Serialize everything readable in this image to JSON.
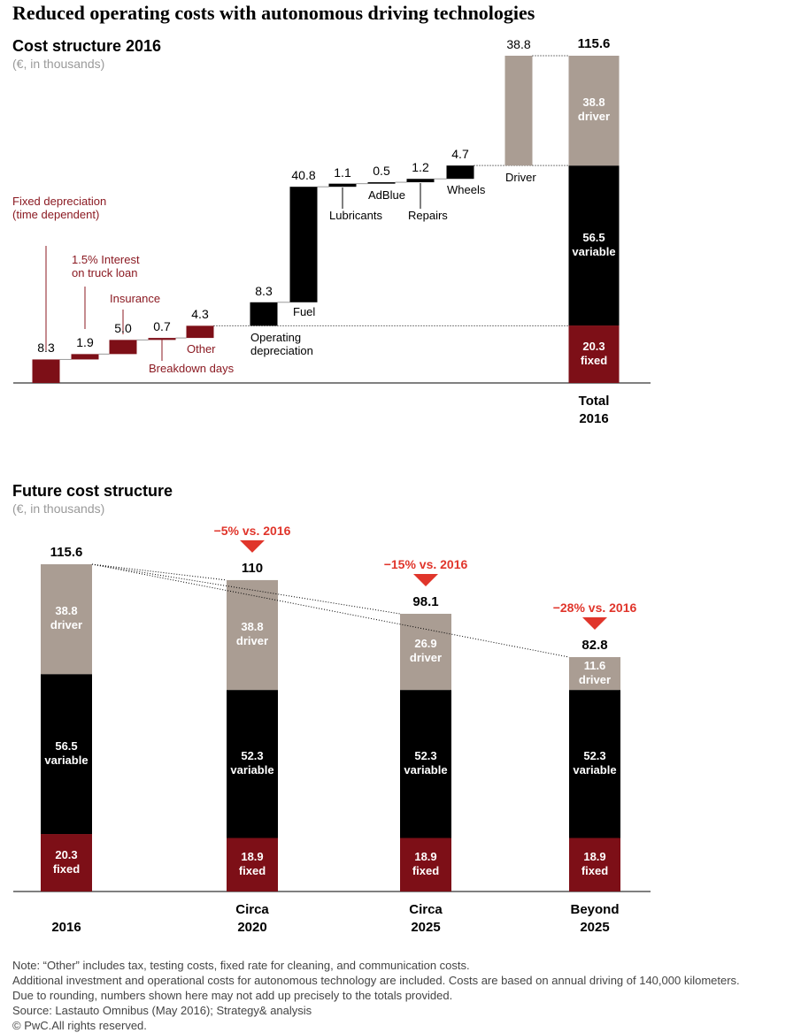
{
  "title": "Reduced operating costs with autonomous driving technologies",
  "chart_data": [
    {
      "type": "waterfall",
      "title": "Cost structure 2016",
      "subtitle": "(€, in thousands)",
      "categories": [
        "Fixed depreciation (time dependent)",
        "1.5% Interest on truck loan",
        "Insurance",
        "Breakdown days",
        "Other",
        "Operating depreciation",
        "Fuel",
        "Lubricants",
        "AdBlue",
        "Repairs",
        "Wheels",
        "Driver"
      ],
      "values": [
        8.3,
        1.9,
        5,
        0.7,
        4.3,
        8.3,
        40.8,
        1.1,
        0.5,
        1.2,
        4.7,
        38.8
      ],
      "value_labels": [
        "8.3",
        "1.9",
        "5.0",
        "0.7",
        "4.3",
        "8.3",
        "40.8",
        "1.1",
        "0.5",
        "1.2",
        "4.7",
        "38.8"
      ],
      "colors": [
        "#7d0f17",
        "#7d0f17",
        "#7d0f17",
        "#7d0f17",
        "#7d0f17",
        "#000000",
        "#000000",
        "#000000",
        "#000000",
        "#000000",
        "#000000",
        "#aa9d93"
      ],
      "total": {
        "label": "Total 2016",
        "value": 115.6,
        "series": [
          {
            "name": "fixed",
            "color": "#7d0f17",
            "value": 20.3
          },
          {
            "name": "variable",
            "color": "#000000",
            "value": 56.5
          },
          {
            "name": "driver",
            "color": "#aa9d93",
            "value": 38.8
          }
        ]
      }
    },
    {
      "type": "stacked_bar",
      "title": "Future cost structure",
      "subtitle": "(€, in thousands)",
      "categories": [
        "2016",
        "Circa 2020",
        "Circa 2025",
        "Beyond 2025"
      ],
      "series": [
        {
          "name": "fixed",
          "color": "#7d0f17",
          "values": [
            20.3,
            18.9,
            18.9,
            18.9
          ]
        },
        {
          "name": "variable",
          "color": "#000000",
          "values": [
            56.5,
            52.3,
            52.3,
            52.3
          ]
        },
        {
          "name": "driver",
          "color": "#aa9d93",
          "values": [
            38.8,
            38.8,
            26.9,
            11.6
          ]
        }
      ],
      "totals": [
        115.6,
        110,
        98.1,
        82.8
      ],
      "changes": [
        null,
        "−5% vs. 2016",
        "−15% vs. 2016",
        "−28% vs. 2016"
      ],
      "change_color": "#e0352b"
    }
  ],
  "notes": [
    "Note: “Other” includes tax, testing costs, fixed rate for cleaning, and communication costs.",
    "Additional investment and operational costs for autonomous technology are included. Costs are based on annual driving of 140,000 kilometers.",
    "Due to rounding, numbers shown here may not add up precisely to the totals provided.",
    "Source: Lastauto Omnibus (May 2016); Strategy& analysis",
    "© PwC.All rights reserved."
  ]
}
